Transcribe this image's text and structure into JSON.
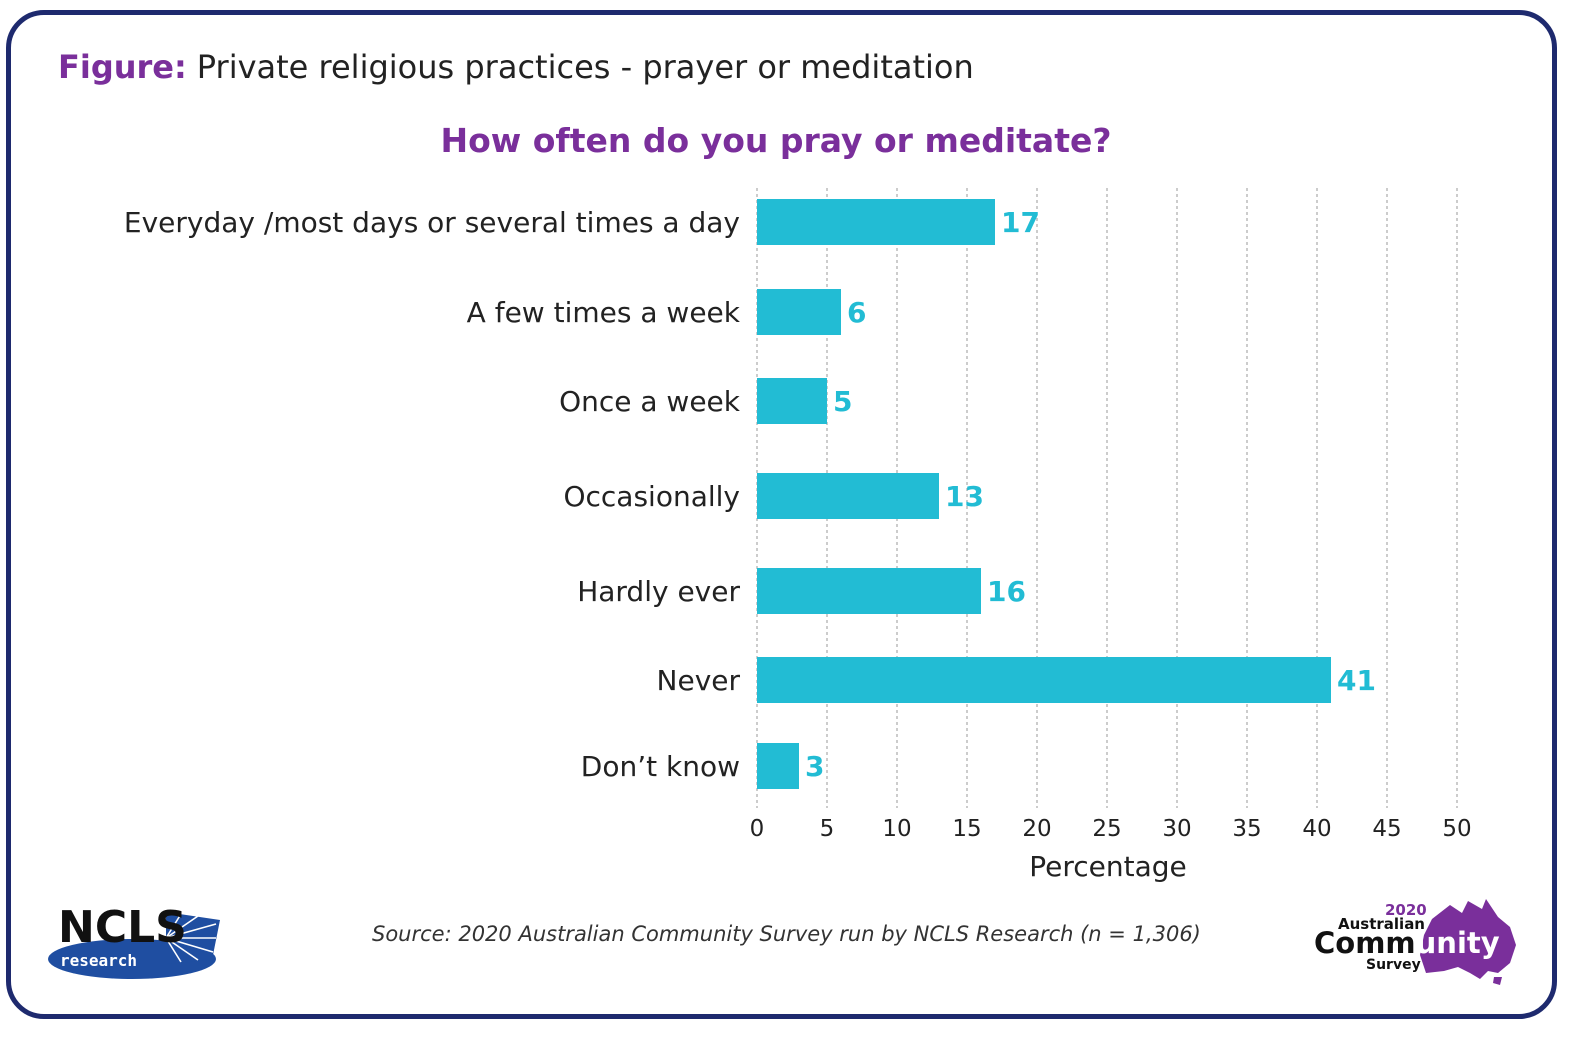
{
  "figure": {
    "label": "Figure:",
    "title": "Private religious practices - prayer or meditation"
  },
  "source": "Source: 2020 Australian Community Survey run by NCLS Research (n = 1,306)",
  "logos": {
    "ncls": {
      "main": "NCLS",
      "sub": "research"
    },
    "acs": {
      "year": "2020",
      "line1": "Australian",
      "line2_a": "Comm",
      "line2_b": "unity",
      "line3": "Survey"
    }
  },
  "colors": {
    "bar": "#22bcd4",
    "value_label": "#22bcd4",
    "title": "#7a2f9b",
    "frame": "#1e2a6e",
    "ncls_blue": "#1f4ea1",
    "acs_purple": "#7a2f9b"
  },
  "chart_data": {
    "type": "bar",
    "orientation": "horizontal",
    "title": "How often do you pray or meditate?",
    "xlabel": "Percentage",
    "ylabel": "",
    "categories": [
      "Everyday /most days or several times a day",
      "A few times a week",
      "Once a week",
      "Occasionally",
      "Hardly ever",
      "Never",
      "Don’t know"
    ],
    "values": [
      17,
      6,
      5,
      13,
      16,
      41,
      3
    ],
    "xlim": [
      0,
      50
    ],
    "xticks": [
      0,
      5,
      10,
      15,
      20,
      25,
      30,
      35,
      40,
      45,
      50
    ],
    "grid": "vertical dashed",
    "legend": "none"
  }
}
